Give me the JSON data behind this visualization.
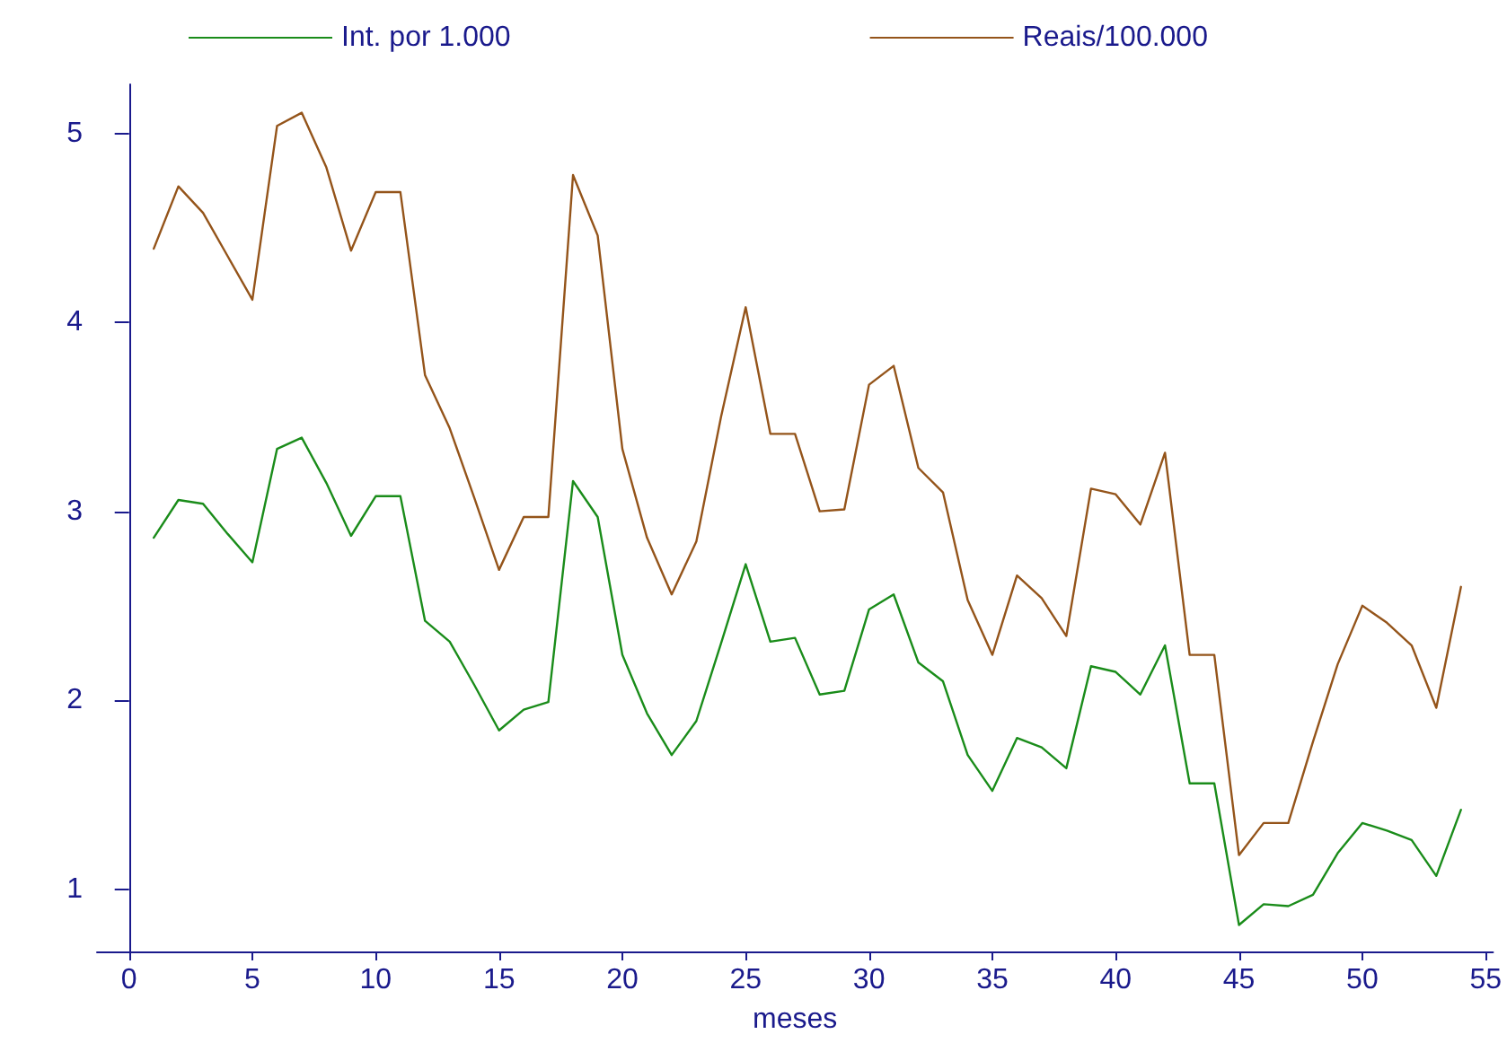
{
  "chart_data": {
    "type": "line",
    "xlabel": "meses",
    "legend": "top",
    "grid": false,
    "marker": "none",
    "line_style": "solid",
    "x": [
      1,
      2,
      3,
      4,
      5,
      6,
      7,
      8,
      9,
      10,
      11,
      12,
      13,
      14,
      15,
      16,
      17,
      18,
      19,
      20,
      21,
      22,
      23,
      24,
      25,
      26,
      27,
      28,
      29,
      30,
      31,
      32,
      33,
      34,
      35,
      36,
      37,
      38,
      39,
      40,
      41,
      42,
      43,
      44,
      45,
      46,
      47,
      48,
      49,
      50,
      51,
      52,
      53,
      54
    ],
    "xlim": [
      -1.3,
      55.3
    ],
    "xticks": [
      0,
      5,
      10,
      15,
      20,
      25,
      30,
      35,
      40,
      45,
      50,
      55
    ],
    "ylim": [
      0.67,
      5.26
    ],
    "yticks": [
      1,
      2,
      3,
      4,
      5
    ],
    "series": [
      {
        "name": "Int. por 1.000",
        "color": "#1a8c1a",
        "values": [
          2.86,
          3.06,
          3.04,
          2.88,
          2.73,
          3.33,
          3.39,
          3.15,
          2.87,
          3.08,
          3.08,
          2.42,
          2.31,
          2.08,
          1.84,
          1.95,
          1.99,
          3.16,
          2.97,
          2.24,
          1.93,
          1.71,
          1.89,
          2.3,
          2.72,
          2.31,
          2.33,
          2.03,
          2.05,
          2.48,
          2.56,
          2.2,
          2.1,
          1.71,
          1.52,
          1.8,
          1.75,
          1.64,
          2.18,
          2.15,
          2.03,
          2.29,
          1.56,
          1.56,
          0.81,
          0.92,
          0.91,
          0.97,
          1.19,
          1.35,
          1.31,
          1.26,
          1.07,
          1.42
        ]
      },
      {
        "name": "Reais/100.000",
        "color": "#94541a",
        "values": [
          4.39,
          4.72,
          4.58,
          4.35,
          4.12,
          5.04,
          5.11,
          4.82,
          4.38,
          4.69,
          4.69,
          3.72,
          3.44,
          3.07,
          2.69,
          2.97,
          2.97,
          4.78,
          4.46,
          3.33,
          2.86,
          2.56,
          2.84,
          3.5,
          4.08,
          3.41,
          3.41,
          3.0,
          3.01,
          3.67,
          3.77,
          3.23,
          3.1,
          2.53,
          2.24,
          2.66,
          2.54,
          2.34,
          3.12,
          3.09,
          2.93,
          3.31,
          2.24,
          2.24,
          1.18,
          1.35,
          1.35,
          1.78,
          2.19,
          2.5,
          2.41,
          2.29,
          1.96,
          2.6
        ]
      }
    ]
  }
}
